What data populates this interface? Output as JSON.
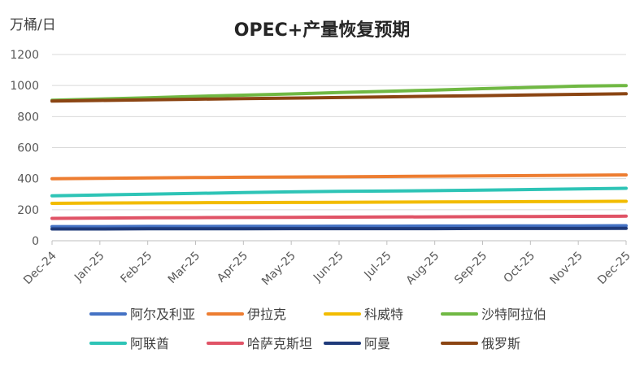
{
  "chart_data": {
    "type": "line",
    "title": "OPEC+产量恢复预期",
    "ylabel": "万桶/日",
    "xlabel": "",
    "ylim": [
      0,
      1200
    ],
    "yticks": [
      0,
      200,
      400,
      600,
      800,
      1000,
      1200
    ],
    "grid": true,
    "legend_position": "bottom",
    "categories": [
      "Dec-24",
      "Jan-25",
      "Feb-25",
      "Mar-25",
      "Apr-25",
      "May-25",
      "Jun-25",
      "Jul-25",
      "Aug-25",
      "Sep-25",
      "Oct-25",
      "Nov-25",
      "Dec-25"
    ],
    "series": [
      {
        "name": "阿尔及利亚",
        "color": "#4472C4",
        "values": [
          91,
          91,
          92,
          92,
          93,
          93,
          94,
          94,
          95,
          95,
          96,
          96,
          97
        ]
      },
      {
        "name": "伊拉克",
        "color": "#ED7D31",
        "values": [
          400,
          402,
          405,
          407,
          409,
          411,
          412,
          414,
          416,
          418,
          420,
          422,
          424
        ]
      },
      {
        "name": "科威特",
        "color": "#F2BC00",
        "values": [
          241,
          243,
          244,
          245,
          246,
          247,
          248,
          249,
          250,
          251,
          252,
          253,
          254
        ]
      },
      {
        "name": "沙特阿拉伯",
        "color": "#70B843",
        "values": [
          905,
          913,
          921,
          930,
          938,
          946,
          955,
          963,
          971,
          980,
          988,
          996,
          1000
        ]
      },
      {
        "name": "阿联酋",
        "color": "#2EC4B6",
        "values": [
          290,
          295,
          300,
          305,
          310,
          315,
          318,
          320,
          323,
          326,
          330,
          334,
          338
        ]
      },
      {
        "name": "哈萨克斯坦",
        "color": "#E05366",
        "values": [
          144,
          146,
          148,
          149,
          150,
          151,
          152,
          153,
          154,
          155,
          156,
          157,
          158
        ]
      },
      {
        "name": "阿曼",
        "color": "#1F3A7A",
        "values": [
          76,
          76,
          77,
          77,
          77,
          78,
          78,
          78,
          78,
          79,
          79,
          79,
          80
        ]
      },
      {
        "name": "俄罗斯",
        "color": "#8B4513",
        "values": [
          900,
          904,
          908,
          912,
          916,
          919,
          923,
          927,
          931,
          935,
          939,
          943,
          947
        ]
      }
    ]
  }
}
